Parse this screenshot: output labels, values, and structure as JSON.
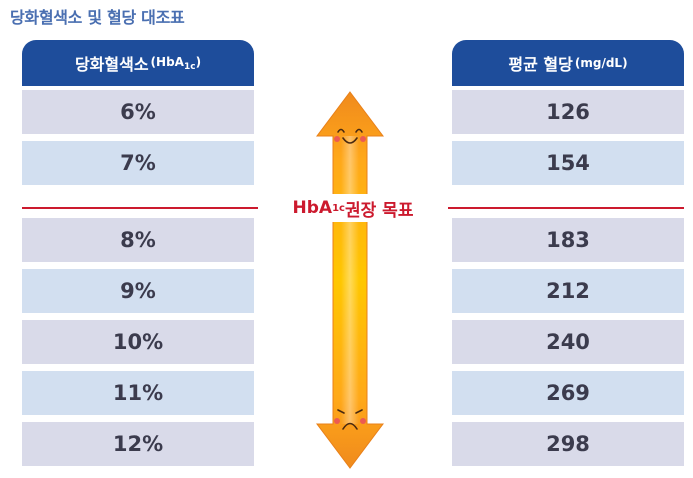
{
  "title": "당화혈색소 및 혈당 대조표",
  "left_header": {
    "main": "당화혈색소",
    "unit_prefix": "(HbA",
    "unit_sub": "1c",
    "unit_suffix": ")"
  },
  "right_header": {
    "main": "평균 혈당",
    "unit": "(mg/dL)"
  },
  "target_label": {
    "prefix": "HbA",
    "sub": "1c",
    "suffix": " 권장 목표"
  },
  "hba1c_values": [
    "6%",
    "7%",
    "8%",
    "9%",
    "10%",
    "11%",
    "12%"
  ],
  "glucose_values": [
    "126",
    "154",
    "183",
    "212",
    "240",
    "269",
    "298"
  ],
  "icons": {
    "top_face": "smiling-face-icon",
    "bottom_face": "sad-face-icon"
  },
  "colors": {
    "header": "#1e4d9b",
    "divider": "#cc1a2e",
    "row_a": "#d9dae9",
    "row_b": "#d2dff0",
    "arrow_top": "#f08a1c",
    "arrow_mid": "#ffc700"
  }
}
